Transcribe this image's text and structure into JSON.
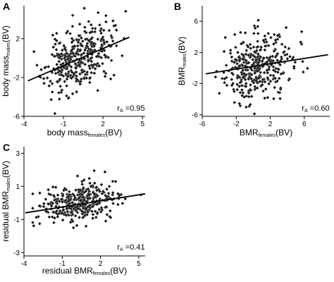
{
  "chart_data": [
    {
      "panel": "A",
      "type": "scatter",
      "xlabel": {
        "main": "body mass",
        "sub": "females",
        "tail": "(BV)"
      },
      "ylabel": {
        "main": "body mass",
        "sub": "males",
        "tail": "(BV)"
      },
      "xlim": [
        -4,
        5.2
      ],
      "ylim": [
        -6,
        5.4
      ],
      "xticks": [
        -4,
        -1,
        2,
        5
      ],
      "yticks": [
        -6,
        -2,
        2
      ],
      "stat": {
        "main": "r",
        "sub": "A",
        "tail": " =0.95"
      },
      "regression": {
        "x1": -3.7,
        "y1": -2.35,
        "x2": 4.0,
        "y2": 2.15
      },
      "scatter": {
        "n": 360,
        "x_center": 0.1,
        "x_sd": 1.25,
        "y_sd": 1.6,
        "slope": 0.58,
        "intercept": -0.2,
        "seed": 11
      }
    },
    {
      "panel": "B",
      "type": "scatter",
      "xlabel": {
        "main": "BMR",
        "sub": "females",
        "tail": "(BV)"
      },
      "ylabel": {
        "main": "BMR",
        "sub": "males",
        "tail": "(BV)"
      },
      "xlim": [
        -6,
        9
      ],
      "ylim": [
        -6.2,
        8
      ],
      "xticks": [
        -6,
        -2,
        2,
        6
      ],
      "yticks": [
        -6,
        -2,
        2,
        6
      ],
      "stat": {
        "main": "r",
        "sub": "A",
        "tail": " =0.60"
      },
      "regression": {
        "x1": -5.6,
        "y1": -0.75,
        "x2": 8.8,
        "y2": 1.7
      },
      "scatter": {
        "n": 360,
        "x_center": 0.5,
        "x_sd": 2.0,
        "y_sd": 2.0,
        "slope": 0.17,
        "intercept": 0.2,
        "seed": 29
      }
    },
    {
      "panel": "C",
      "type": "scatter",
      "xlabel": {
        "main": "residual BMR",
        "sub": "females",
        "tail": "(BV)"
      },
      "ylabel": {
        "main": "residual BMR",
        "sub": "males",
        "tail": "(BV)"
      },
      "xlim": [
        -4,
        5.5
      ],
      "ylim": [
        -3.2,
        3.4
      ],
      "xticks": [
        -4,
        -1,
        2,
        5
      ],
      "yticks": [
        -3,
        -1,
        1,
        3
      ],
      "stat": {
        "main": "r",
        "sub": "A",
        "tail": " =0.41"
      },
      "regression": {
        "x1": -3.9,
        "y1": -0.6,
        "x2": 5.5,
        "y2": 0.55
      },
      "scatter": {
        "n": 360,
        "x_center": 0.4,
        "x_sd": 1.5,
        "y_sd": 0.55,
        "slope": 0.12,
        "intercept": -0.05,
        "seed": 47
      }
    }
  ]
}
